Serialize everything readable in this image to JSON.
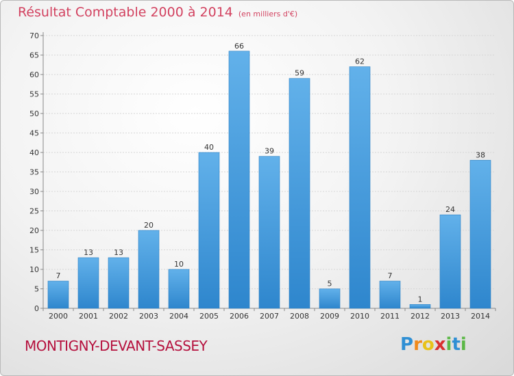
{
  "header": {
    "title": "Résultat Comptable 2000 à 2014",
    "unit": "(en milliers d'€)"
  },
  "footer": {
    "commune": "MONTIGNY-DEVANT-SASSEY",
    "logo_text": "Proxiti"
  },
  "colors": {
    "title": "#d2415f",
    "commune": "#b5103d",
    "bar_light": "#62b1ea",
    "bar_dark": "#2e86cd",
    "grid": "#d6d6d6"
  },
  "chart_data": {
    "type": "bar",
    "title": "Résultat Comptable 2000 à 2014",
    "ylabel": "",
    "xlabel": "",
    "categories": [
      "2000",
      "2001",
      "2002",
      "2003",
      "2004",
      "2005",
      "2006",
      "2007",
      "2008",
      "2009",
      "2010",
      "2011",
      "2012",
      "2013",
      "2014"
    ],
    "values": [
      7,
      13,
      13,
      20,
      10,
      40,
      66,
      39,
      59,
      5,
      62,
      7,
      1,
      24,
      38
    ],
    "ylim": [
      0,
      70
    ],
    "yticks": [
      0,
      5,
      10,
      15,
      20,
      25,
      30,
      35,
      40,
      45,
      50,
      55,
      60,
      65,
      70
    ],
    "grid": true,
    "data_labels": true
  }
}
